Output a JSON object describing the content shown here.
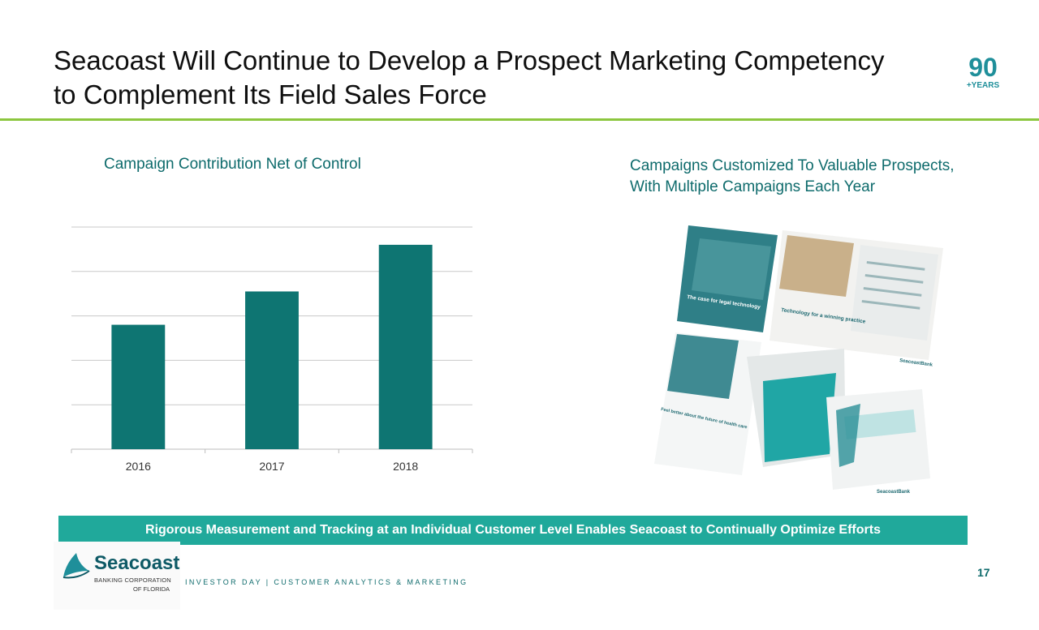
{
  "slide": {
    "title_line1": "Seacoast Will Continue to Develop a Prospect Marketing Competency",
    "title_line2": "to Complement Its Field Sales Force",
    "badge_number": "90",
    "badge_text": "+YEARS",
    "left_heading": "Campaign Contribution Net of Control",
    "right_heading_line1": "Campaigns Customized To Valuable Prospects,",
    "right_heading_line2": "With Multiple Campaigns Each Year",
    "banner": "Rigorous Measurement and Tracking at an Individual Customer Level Enables Seacoast to Continually Optimize Efforts",
    "footer": "INVESTOR DAY | CUSTOMER ANALYTICS & MARKETING",
    "page_number": "17"
  },
  "logo": {
    "name": "Seacoast",
    "sub1": "BANKING CORPORATION",
    "sub2": "OF FLORIDA"
  },
  "collage": {
    "brochure1_title": "The case for legal technology",
    "brochure2_title": "Technology for a winning practice",
    "brochure3_title": "Feel better about the future of health care",
    "brand": "SeacoastBank"
  },
  "colors": {
    "bar": "#0e7572",
    "accent_green": "#8cc63f",
    "teal_text": "#0e6b6c",
    "banner": "#20a99b"
  },
  "chart_data": {
    "type": "bar",
    "categories": [
      "2016",
      "2017",
      "2018"
    ],
    "values": [
      2.8,
      3.55,
      4.6
    ],
    "title": "Campaign Contribution Net of Control",
    "xlabel": "",
    "ylabel": "",
    "ylim": [
      0,
      5
    ],
    "gridlines": [
      1,
      2,
      3,
      4,
      5
    ],
    "grid": true,
    "y_tick_labels_shown": false
  }
}
